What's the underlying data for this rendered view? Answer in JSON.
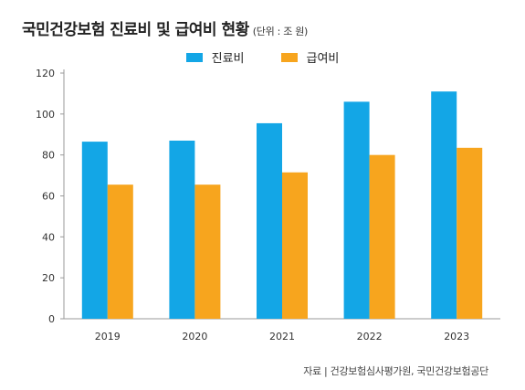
{
  "header": {
    "title": "국민건강보험 진료비 및 급여비 현황",
    "unit": "(단위 : 조 원)"
  },
  "source": "자료 | 건강보험심사평가원, 국민건강보험공단",
  "colors": {
    "series1": "#13a6e6",
    "series2": "#f7a51e",
    "axis": "#999999"
  },
  "chart_data": {
    "type": "bar",
    "title": "국민건강보험 진료비 및 급여비 현황",
    "categories": [
      "2019",
      "2020",
      "2021",
      "2022",
      "2023"
    ],
    "series": [
      {
        "name": "진료비",
        "values": [
          86.5,
          87,
          95.5,
          106,
          111
        ]
      },
      {
        "name": "급여비",
        "values": [
          65.5,
          65.5,
          71.5,
          80,
          83.5
        ]
      }
    ],
    "ylim": [
      0,
      120
    ],
    "yticks": [
      0,
      20,
      40,
      60,
      80,
      100,
      120
    ],
    "legend_position": "top-center",
    "grid": false
  }
}
